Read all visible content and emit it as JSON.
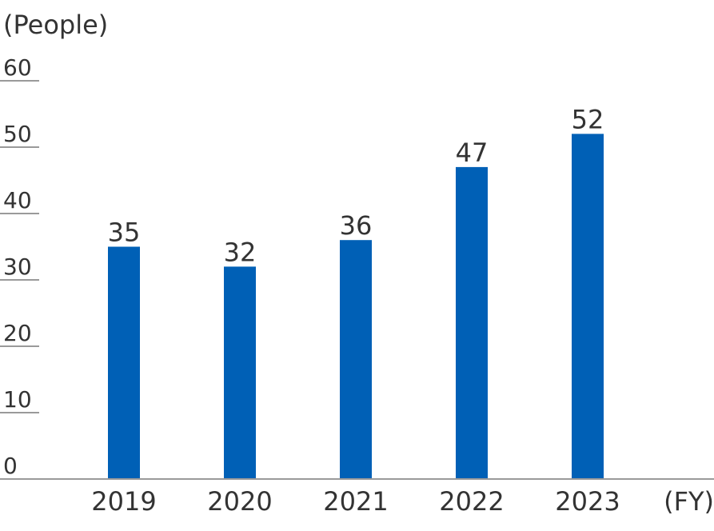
{
  "chart_data": {
    "type": "bar",
    "ylabel": "(People)",
    "xlabel": "(FY)",
    "categories": [
      "2019",
      "2020",
      "2021",
      "2022",
      "2023"
    ],
    "values": [
      35,
      32,
      36,
      47,
      52
    ],
    "yticks": [
      "0",
      "10",
      "20",
      "30",
      "40",
      "50",
      "60"
    ],
    "ylim": [
      0,
      60
    ],
    "bar_color": "#0060b6",
    "axis_color": "#9a9a9a",
    "text_color": "#333333",
    "grid": false,
    "legend": "none"
  }
}
